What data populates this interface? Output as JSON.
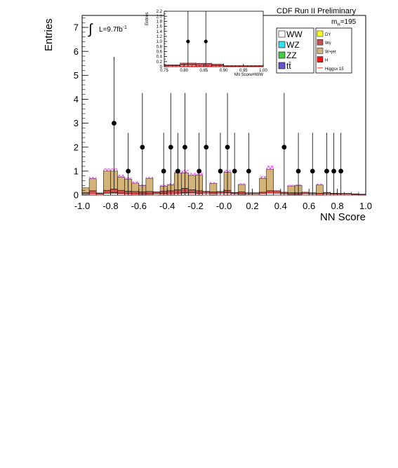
{
  "chart_data": [
    {
      "type": "histogram",
      "title": "CDF Run II Preliminary",
      "xlabel": "NN Score",
      "ylabel": "Entries",
      "xlim": [
        -1.0,
        1.0
      ],
      "ylim": [
        0,
        7.5
      ],
      "x_ticks": [
        "-1.0",
        "-0.8",
        "-0.6",
        "-0.4",
        "-0.2",
        "-0.0",
        "0.2",
        "0.4",
        "0.6",
        "0.8",
        "1.0"
      ],
      "y_ticks": [
        "0",
        "1",
        "2",
        "3",
        "4",
        "5",
        "6",
        "7"
      ],
      "grid": false,
      "annotations": {
        "lumi": "L=9.7fb",
        "lumi_exp": "-1",
        "mass_main": "m",
        "mass_sub": "H",
        "mass_val": "=195"
      },
      "legend": {
        "placement": "top-right",
        "entries": [
          {
            "label": "WW",
            "color": "#ffffff"
          },
          {
            "label": "WZ",
            "color": "#33e0f0"
          },
          {
            "label": "ZZ",
            "color": "#44cc44"
          },
          {
            "label": "tt̄",
            "color": "#6655cc"
          },
          {
            "label": "DY",
            "color": "#ffff22"
          },
          {
            "label": "Wγ",
            "color": "#c85050"
          },
          {
            "label": "W+jet",
            "color": "#d2b47a"
          },
          {
            "label": "H",
            "color": "#ff1111"
          },
          {
            "label": "Higgsx 15",
            "color": "#ee3333"
          }
        ]
      },
      "bin_edges": [
        -1.0,
        -0.95,
        -0.9,
        -0.85,
        -0.8,
        -0.75,
        -0.7,
        -0.65,
        -0.6,
        -0.55,
        -0.5,
        -0.45,
        -0.4,
        -0.35,
        -0.3,
        -0.25,
        -0.2,
        -0.15,
        -0.1,
        -0.05,
        0.0,
        0.05,
        0.1,
        0.15,
        0.2,
        0.25,
        0.3,
        0.35,
        0.4,
        0.45,
        0.5,
        0.55,
        0.6,
        0.65,
        0.7,
        0.75,
        0.8,
        0.85,
        0.9,
        0.95,
        1.0
      ],
      "series": [
        {
          "name": "WW",
          "color": "#ffffff",
          "values": [
            0.05,
            0.08,
            0.04,
            0.08,
            0.1,
            0.08,
            0.06,
            0.05,
            0.06,
            0.05,
            0.06,
            0.07,
            0.08,
            0.07,
            0.1,
            0.1,
            0.08,
            0.08,
            0.07,
            0.08,
            0.1,
            0.06,
            0.06,
            0.05,
            0.05,
            0.06,
            0.08,
            0.08,
            0.06,
            0.05,
            0.05,
            0.06,
            0.05,
            0.04,
            0.05,
            0.04,
            0.04,
            0.04,
            0.03,
            0.02
          ]
        },
        {
          "name": "Wγ",
          "color": "#c85050",
          "values": [
            0.05,
            0.1,
            0.05,
            0.12,
            0.15,
            0.12,
            0.1,
            0.1,
            0.08,
            0.1,
            0.08,
            0.1,
            0.1,
            0.15,
            0.18,
            0.12,
            0.1,
            0.08,
            0.07,
            0.07,
            0.1,
            0.05,
            0.08,
            0.05,
            0.05,
            0.06,
            0.1,
            0.1,
            0.06,
            0.05,
            0.05,
            0.06,
            0.05,
            0.03,
            0.06,
            0.04,
            0.03,
            0.03,
            0.02,
            0.02
          ]
        },
        {
          "name": "W+jet",
          "color": "#d2b47a",
          "values": [
            0.2,
            0.5,
            0.0,
            0.8,
            0.75,
            0.55,
            0.5,
            0.35,
            0.25,
            0.55,
            0.0,
            0.2,
            0.25,
            0.7,
            0.65,
            0.6,
            0.65,
            0.0,
            0.35,
            0.0,
            0.75,
            0.0,
            0.3,
            0.0,
            0.0,
            0.58,
            0.9,
            0.0,
            0.0,
            0.28,
            0.3,
            0.0,
            0.0,
            0.35,
            0.0,
            0.0,
            0.0,
            0.0,
            0.0,
            0.0
          ]
        }
      ],
      "signal": {
        "name": "Higgsx 15",
        "color": "#ee44ee",
        "values": [
          0.0,
          0.08,
          0.0,
          0.12,
          0.12,
          0.1,
          0.08,
          0.07,
          0.05,
          0.06,
          0.0,
          0.06,
          0.06,
          0.1,
          0.12,
          0.1,
          0.1,
          0.0,
          0.05,
          0.0,
          0.1,
          0.0,
          0.05,
          0.0,
          0.0,
          0.1,
          0.15,
          0.0,
          0.0,
          0.05,
          0.05,
          0.0,
          0.0,
          0.06,
          0.0,
          0.0,
          0.0,
          0.0,
          0.0,
          0.0
        ]
      },
      "data_points": {
        "x": [
          -0.775,
          -0.675,
          -0.575,
          -0.425,
          -0.375,
          -0.325,
          -0.275,
          -0.175,
          -0.125,
          -0.025,
          0.025,
          0.075,
          0.175,
          0.425,
          0.525,
          0.625,
          0.725,
          0.775,
          0.825
        ],
        "y": [
          3,
          1,
          2,
          1,
          2,
          1,
          2,
          1,
          2,
          1,
          2,
          1,
          1,
          2,
          1,
          1,
          1,
          1,
          1
        ]
      }
    },
    {
      "type": "histogram",
      "title": "",
      "xlabel": "NN ScoreHWW",
      "ylabel": "Entries",
      "xlim": [
        0.75,
        1.0
      ],
      "ylim": [
        0,
        2.2
      ],
      "x_ticks": [
        "0.75",
        "0.80",
        "0.85",
        "0.90",
        "0.95",
        "1.00"
      ],
      "y_ticks": [
        "0",
        "0.2",
        "0.4",
        "0.6",
        "0.8",
        "1.0",
        "1.2",
        "1.4",
        "1.6",
        "1.8",
        "2.0",
        "2.2"
      ],
      "bin_edges": [
        0.75,
        0.79,
        0.83,
        0.87,
        0.9,
        1.0
      ],
      "series": [
        {
          "name": "WW",
          "color": "#ffffff",
          "values": [
            0.04,
            0.06,
            0.05,
            0.04,
            0.02
          ]
        },
        {
          "name": "Wγ",
          "color": "#c85050",
          "values": [
            0.03,
            0.08,
            0.08,
            0.06,
            0.02
          ]
        }
      ],
      "signal": {
        "name": "Higgsx 15",
        "color": "#ee44ee",
        "values": [
          0.01,
          0.02,
          0.02,
          0.01,
          0.01
        ]
      },
      "data_points": {
        "x": [
          0.81,
          0.855
        ],
        "y": [
          1,
          1
        ]
      }
    }
  ]
}
